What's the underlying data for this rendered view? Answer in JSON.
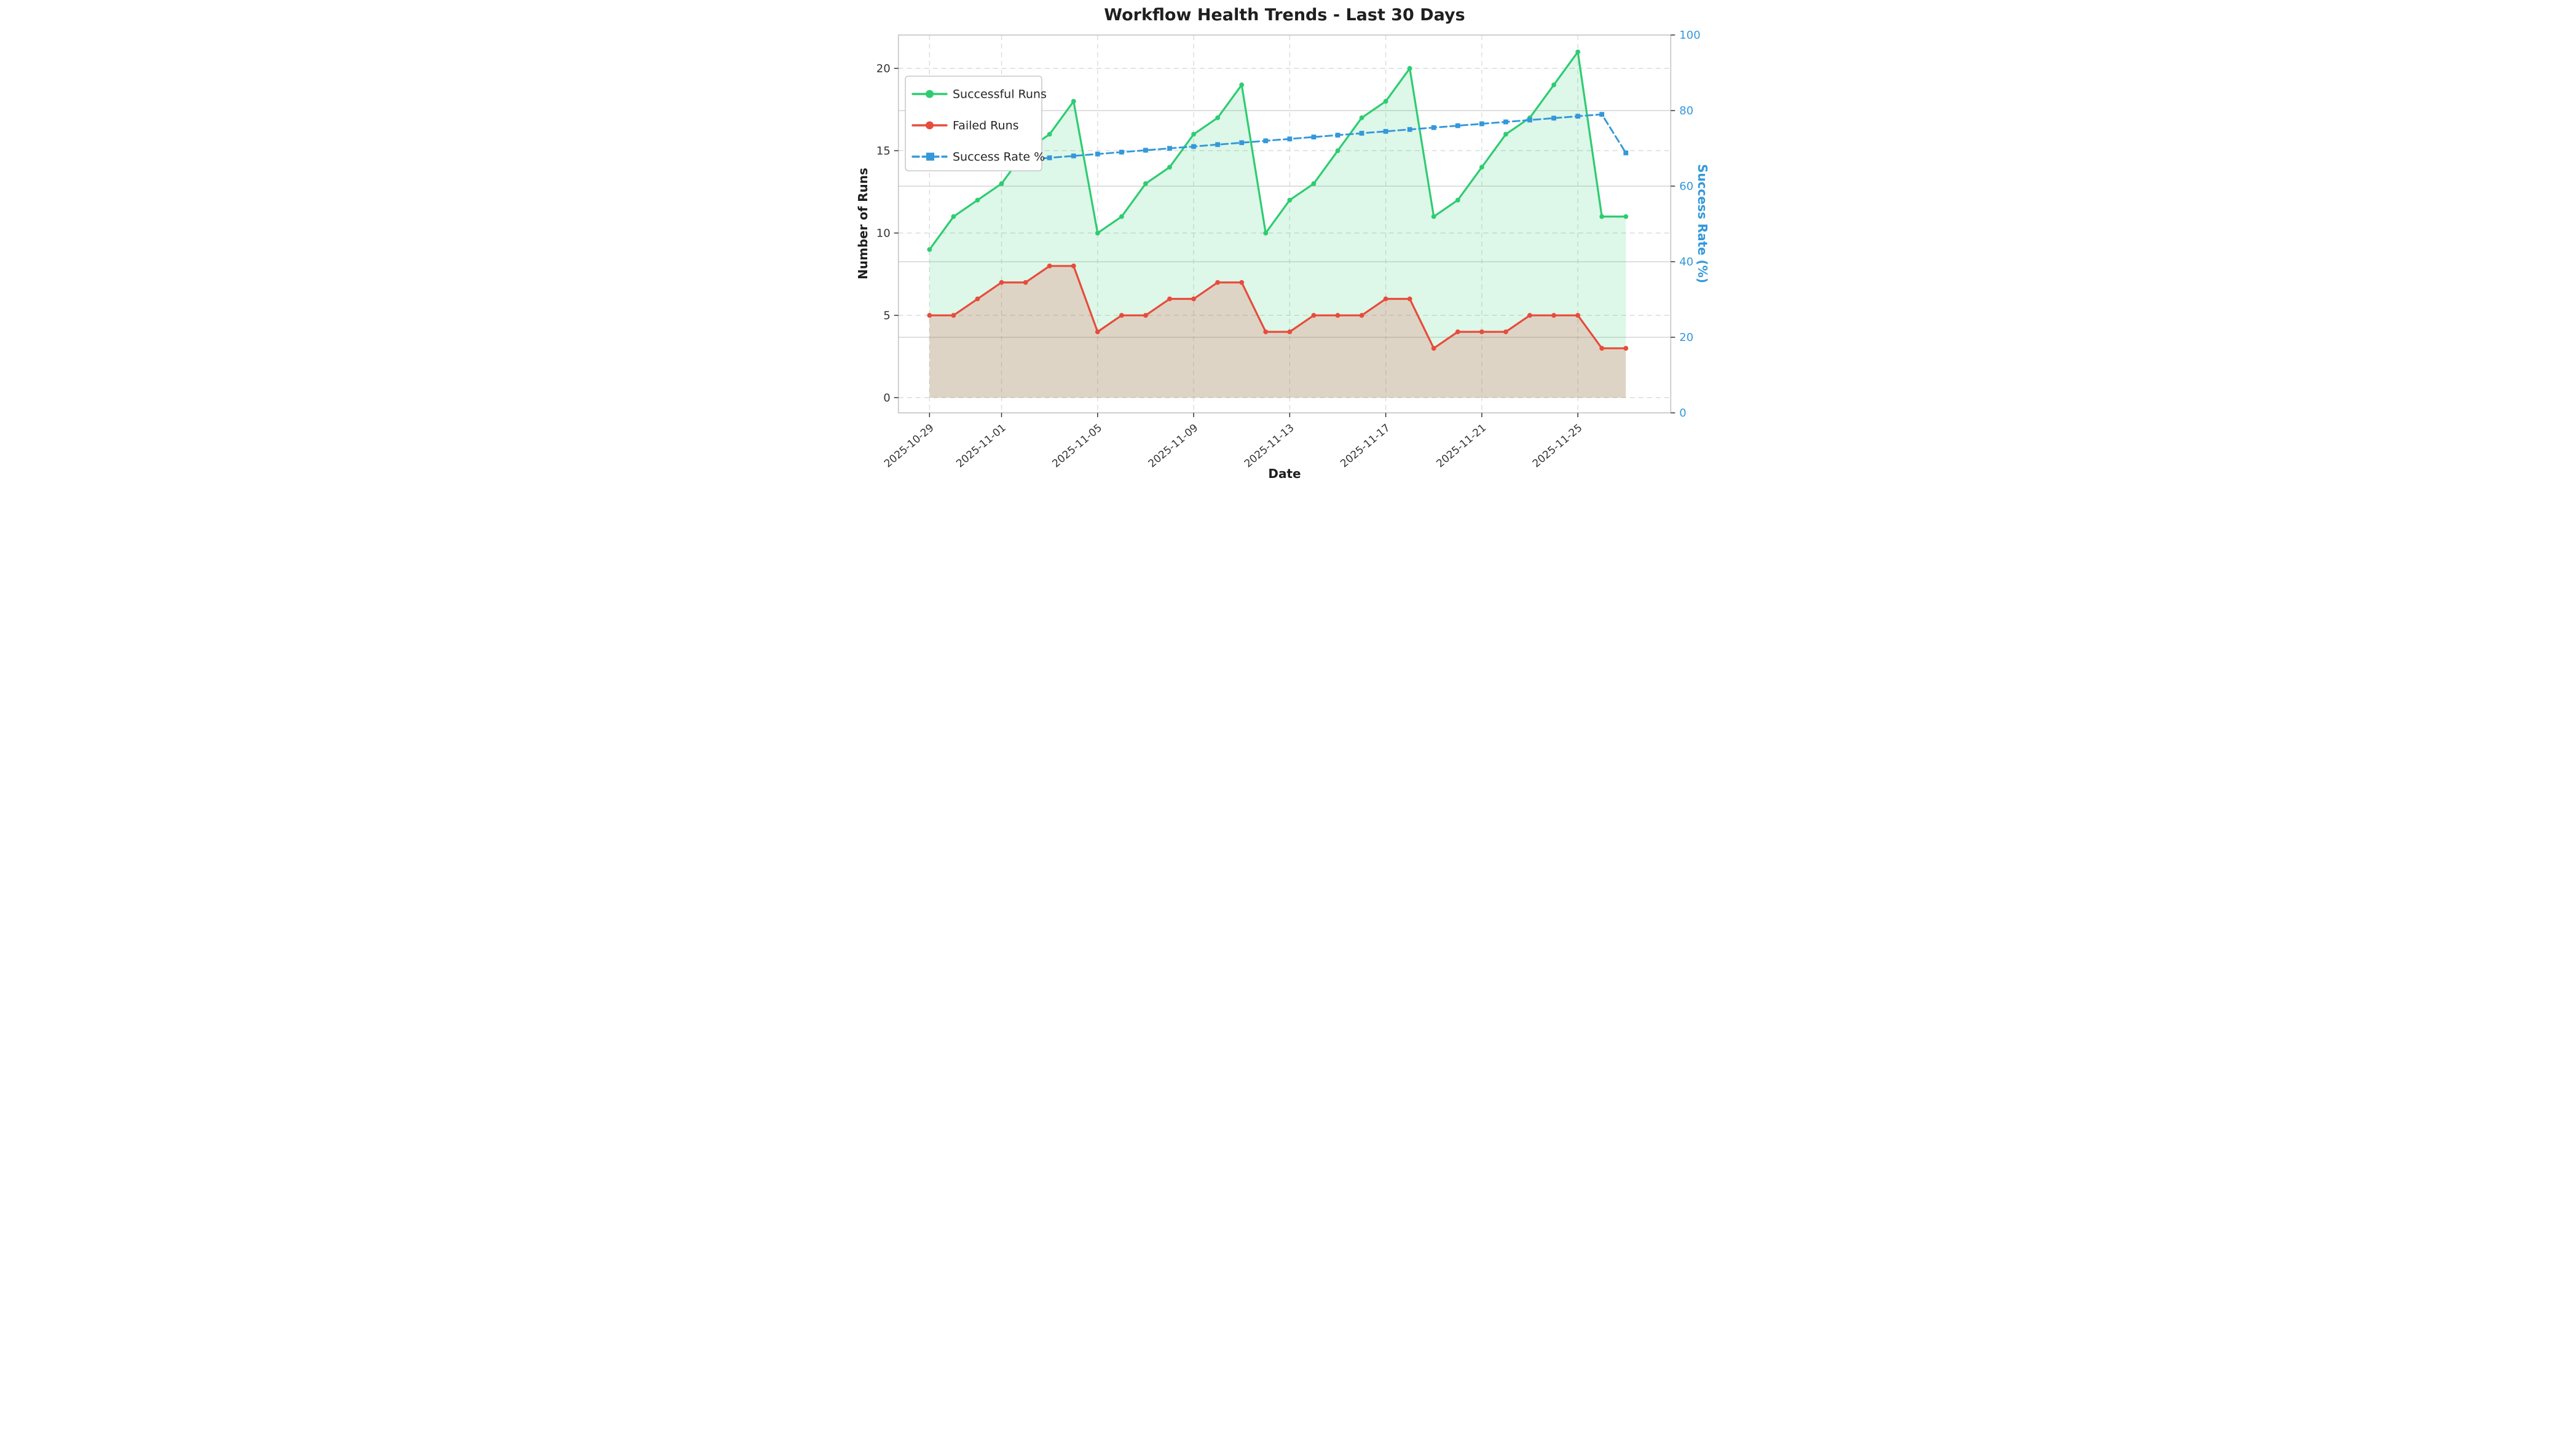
{
  "title": "Workflow Health Trends - Last 30 Days",
  "chart_data": {
    "type": "line",
    "x": [
      "2025-10-29",
      "2025-10-30",
      "2025-10-31",
      "2025-11-01",
      "2025-11-02",
      "2025-11-03",
      "2025-11-04",
      "2025-11-05",
      "2025-11-06",
      "2025-11-07",
      "2025-11-08",
      "2025-11-09",
      "2025-11-10",
      "2025-11-11",
      "2025-11-12",
      "2025-11-13",
      "2025-11-14",
      "2025-11-15",
      "2025-11-16",
      "2025-11-17",
      "2025-11-18",
      "2025-11-19",
      "2025-11-20",
      "2025-11-21",
      "2025-11-22",
      "2025-11-23",
      "2025-11-24",
      "2025-11-25",
      "2025-11-26",
      "2025-11-27"
    ],
    "series": [
      {
        "name": "Successful Runs",
        "axis": "left",
        "color": "#2ecc71",
        "line_style": "solid",
        "marker": "circle",
        "area_fill": true,
        "fill_color": "rgba(46,204,113,0.16)",
        "values": [
          9,
          11,
          12,
          13,
          15,
          16,
          18,
          10,
          11,
          13,
          14,
          16,
          17,
          19,
          10,
          12,
          13,
          15,
          17,
          18,
          20,
          11,
          12,
          14,
          16,
          17,
          19,
          21,
          11,
          11
        ]
      },
      {
        "name": "Failed Runs",
        "axis": "left",
        "color": "#e74c3c",
        "line_style": "solid",
        "marker": "circle",
        "area_fill": true,
        "fill_color": "rgba(231,76,60,0.20)",
        "values": [
          5,
          5,
          6,
          7,
          7,
          8,
          8,
          4,
          5,
          5,
          6,
          6,
          7,
          7,
          4,
          4,
          5,
          5,
          5,
          6,
          6,
          3,
          4,
          4,
          4,
          5,
          5,
          5,
          3,
          3
        ]
      },
      {
        "name": "Success Rate %",
        "axis": "right",
        "color": "#3498db",
        "line_style": "dashed",
        "marker": "square",
        "area_fill": false,
        "values": [
          65.0,
          65.5,
          66.0,
          66.5,
          67.0,
          67.5,
          68.0,
          68.5,
          69.0,
          69.5,
          70.0,
          70.5,
          71.0,
          71.5,
          72.0,
          72.5,
          73.0,
          73.5,
          74.0,
          74.5,
          75.0,
          75.5,
          76.0,
          76.5,
          77.0,
          77.5,
          78.0,
          78.5,
          79.0,
          68.8
        ]
      }
    ],
    "xlabel": "Date",
    "ylabel_left": "Number of Runs",
    "ylabel_right": "Success Rate (%)",
    "ylim_left": [
      0,
      22
    ],
    "ylim_right": [
      0,
      100
    ],
    "yticks_left": [
      0,
      5,
      10,
      15,
      20
    ],
    "yticks_right": [
      0,
      20,
      40,
      60,
      80,
      100
    ],
    "xtick_positions": [
      0,
      3,
      7,
      11,
      15,
      19,
      23,
      27
    ],
    "xtick_labels": [
      "2025-10-29",
      "2025-11-01",
      "2025-11-05",
      "2025-11-09",
      "2025-11-13",
      "2025-11-17",
      "2025-11-21",
      "2025-11-25"
    ],
    "grid": true,
    "legend_position": "upper left"
  },
  "colors": {
    "success_green": "#2ecc71",
    "failed_red": "#e74c3c",
    "rate_blue": "#3498db",
    "grid_dashed": "#d9d9d9",
    "grid_solid": "#cccccc",
    "spine": "#c4c4c4",
    "text_dark": "#1f1f1f",
    "tick_text": "#333333"
  }
}
